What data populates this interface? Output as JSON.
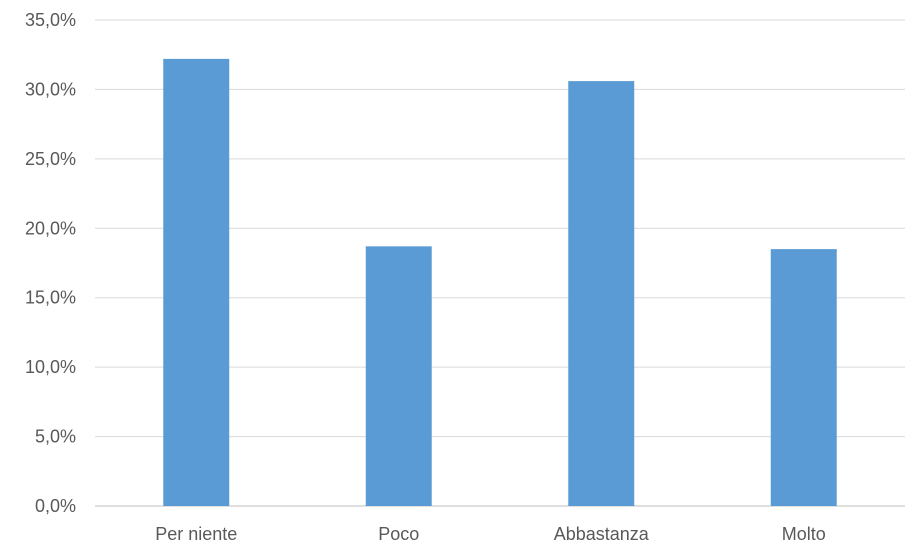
{
  "chart_data": {
    "type": "bar",
    "categories": [
      "Per niente",
      "Poco",
      "Abbastanza",
      "Molto"
    ],
    "values": [
      32.2,
      18.7,
      30.6,
      18.5
    ],
    "y_ticks": [
      "0,0%",
      "5,0%",
      "10,0%",
      "15,0%",
      "20,0%",
      "25,0%",
      "30,0%",
      "35,0%"
    ],
    "ylim": [
      0,
      35
    ],
    "grid": true,
    "bar_color": "#5b9bd5",
    "grid_color": "#d9d9d9"
  }
}
